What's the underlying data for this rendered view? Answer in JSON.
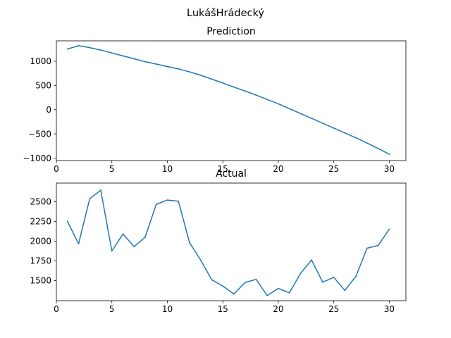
{
  "figure": {
    "suptitle": "LukášHrádecký"
  },
  "chart_data": [
    {
      "type": "line",
      "title": "Prediction",
      "x": [
        1,
        2,
        3,
        4,
        5,
        6,
        7,
        8,
        9,
        10,
        11,
        12,
        13,
        14,
        15,
        16,
        17,
        18,
        19,
        20,
        21,
        22,
        23,
        24,
        25,
        26,
        27,
        28,
        29,
        30
      ],
      "series": [
        {
          "values": [
            1250,
            1320,
            1280,
            1230,
            1170,
            1110,
            1050,
            990,
            940,
            890,
            840,
            780,
            710,
            630,
            550,
            465,
            385,
            300,
            210,
            120,
            20,
            -80,
            -180,
            -280,
            -380,
            -480,
            -580,
            -690,
            -800,
            -920
          ]
        }
      ],
      "xlim": [
        0,
        31.5
      ],
      "ylim": [
        -1050,
        1420
      ],
      "xticks": [
        0,
        5,
        10,
        15,
        20,
        25,
        30
      ],
      "yticks": [
        -1000,
        -500,
        0,
        500,
        1000
      ],
      "xlabel": "",
      "ylabel": "",
      "line_color": "#1f77b4",
      "grid": false
    },
    {
      "type": "line",
      "title": "Actual",
      "x": [
        1,
        2,
        3,
        4,
        5,
        6,
        7,
        8,
        9,
        10,
        11,
        12,
        13,
        14,
        15,
        16,
        17,
        18,
        19,
        20,
        21,
        22,
        23,
        24,
        25,
        26,
        27,
        28,
        29,
        30
      ],
      "series": [
        {
          "values": [
            2250,
            1965,
            2535,
            2645,
            1875,
            2090,
            1930,
            2050,
            2465,
            2520,
            2505,
            1980,
            1760,
            1510,
            1430,
            1330,
            1475,
            1515,
            1310,
            1400,
            1345,
            1590,
            1760,
            1480,
            1540,
            1375,
            1555,
            1910,
            1945,
            2150
          ]
        }
      ],
      "xlim": [
        0,
        31.5
      ],
      "ylim": [
        1245,
        2735
      ],
      "xticks": [
        0,
        5,
        10,
        15,
        20,
        25,
        30
      ],
      "yticks": [
        1500,
        1750,
        2000,
        2250,
        2500
      ],
      "xlabel": "",
      "ylabel": "",
      "line_color": "#1f77b4",
      "grid": false
    }
  ]
}
